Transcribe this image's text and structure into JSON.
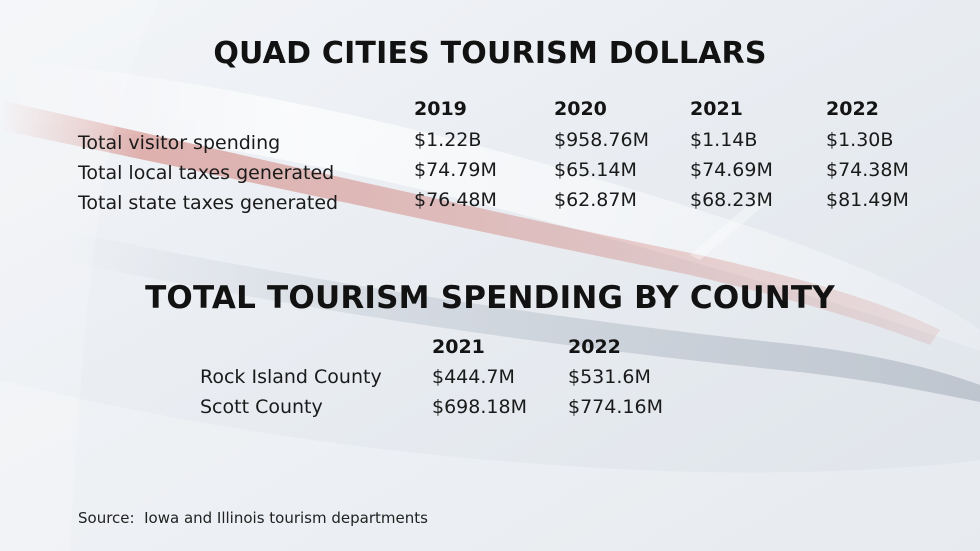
{
  "tourism_table": {
    "title": "QUAD CITIES TOURISM DOLLARS",
    "columns": [
      "2019",
      "2020",
      "2021",
      "2022"
    ],
    "rows": [
      {
        "label": "Total visitor spending",
        "values": [
          "$1.22B",
          "$958.76M",
          "$1.14B",
          "$1.30B"
        ]
      },
      {
        "label": "Total local taxes generated",
        "values": [
          "$74.79M",
          "$65.14M",
          "$74.69M",
          "$74.38M"
        ]
      },
      {
        "label": "Total state taxes generated",
        "values": [
          "$76.48M",
          "$62.87M",
          "$68.23M",
          "$81.49M"
        ]
      }
    ]
  },
  "county_table": {
    "title": "TOTAL TOURISM SPENDING BY COUNTY",
    "columns": [
      "2021",
      "2022"
    ],
    "rows": [
      {
        "label": "Rock Island County",
        "values": [
          "$444.7M",
          "$531.6M"
        ]
      },
      {
        "label": "Scott County",
        "values": [
          "$698.18M",
          "$774.16M"
        ]
      }
    ]
  },
  "source": "Source:  Iowa and Illinois tourism departments",
  "colors": {
    "background": "#e9edf2",
    "accent_red": "#c0392b",
    "text": "#141414"
  }
}
